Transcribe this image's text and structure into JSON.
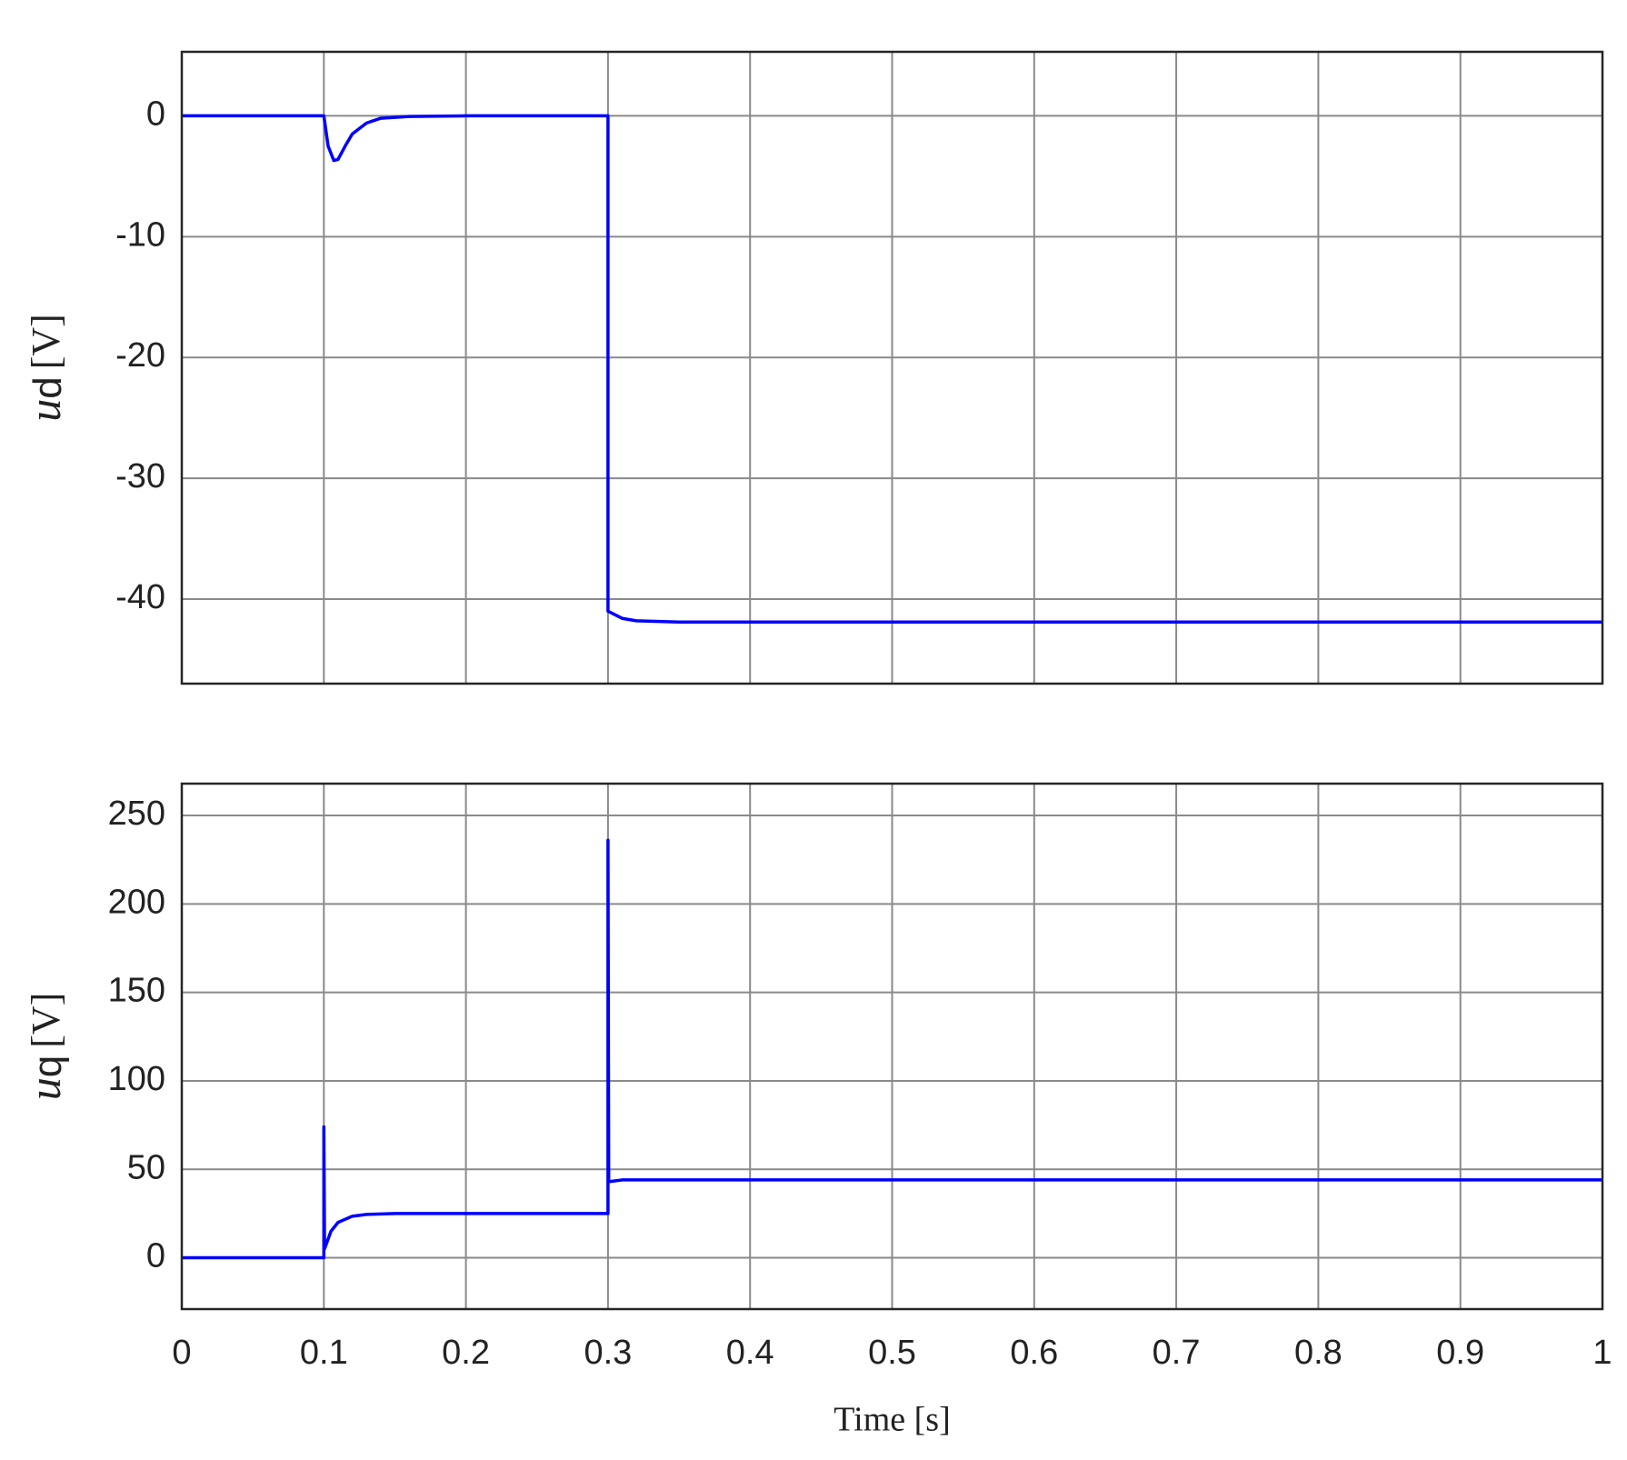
{
  "chart_data": [
    {
      "type": "line",
      "y_label": {
        "symbol": "u",
        "subscript": "d",
        "unit": "[V]"
      },
      "x": [
        0,
        0.1,
        0.103,
        0.107,
        0.11,
        0.115,
        0.12,
        0.13,
        0.14,
        0.16,
        0.2,
        0.3,
        0.3,
        0.31,
        0.32,
        0.35,
        1
      ],
      "series": [
        {
          "color": "#0000ff",
          "values": [
            0,
            0,
            -2.5,
            -3.7,
            -3.6,
            -2.5,
            -1.5,
            -0.6,
            -0.2,
            -0.05,
            0,
            0,
            -41,
            -41.6,
            -41.8,
            -41.9,
            -41.9
          ]
        }
      ],
      "xlim": [
        0,
        1
      ],
      "xticks": [
        0,
        0.1,
        0.2,
        0.3,
        0.4,
        0.5,
        0.6,
        0.7,
        0.8,
        0.9,
        1
      ],
      "ylim": [
        -47,
        5.3
      ],
      "yticks": [
        -40,
        -30,
        -20,
        -10,
        0
      ],
      "grid": true
    },
    {
      "type": "line",
      "y_label": {
        "symbol": "u",
        "subscript": "q",
        "unit": "[V]"
      },
      "x_label": "Time [s]",
      "x": [
        0,
        0.1,
        0.1,
        0.1005,
        0.105,
        0.11,
        0.12,
        0.13,
        0.15,
        0.3,
        0.3,
        0.3005,
        0.31,
        1
      ],
      "series": [
        {
          "color": "#0000ff",
          "values": [
            0,
            0,
            74,
            5,
            15,
            20,
            23.5,
            24.5,
            25,
            25,
            236,
            43,
            44,
            44
          ]
        }
      ],
      "xlim": [
        0,
        1
      ],
      "xticks": [
        0,
        0.1,
        0.2,
        0.3,
        0.4,
        0.5,
        0.6,
        0.7,
        0.8,
        0.9,
        1
      ],
      "ylim": [
        -29,
        268
      ],
      "yticks": [
        0,
        50,
        100,
        150,
        200,
        250
      ],
      "grid": true
    }
  ]
}
